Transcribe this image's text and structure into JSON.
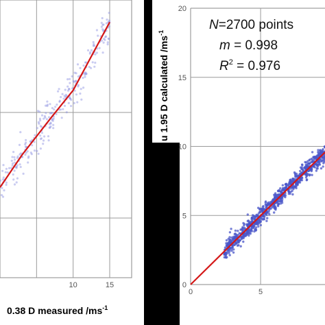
{
  "chart_data": [
    {
      "type": "scatter",
      "xlabel": "0.38 D measured  /ms",
      "xlabel_sup": "-1",
      "xlim": [
        0,
        18
      ],
      "ylim": [
        -1,
        15.3
      ],
      "grid": true,
      "x_ticks": [
        10,
        15
      ],
      "fit_line": {
        "points": [
          [
            0,
            4.3
          ],
          [
            3,
            6.2
          ],
          [
            7,
            8.4
          ],
          [
            10,
            10.0
          ],
          [
            12,
            11.6
          ],
          [
            15,
            14.0
          ]
        ],
        "color": "#d41616"
      },
      "scatter_color": "#8a8ee0",
      "cloud": {
        "x_from": 0,
        "x_to": 15,
        "spread": 0.55,
        "count": 260
      }
    },
    {
      "type": "scatter",
      "ylabel": "u 1.95 D calculated /ms",
      "ylabel_sup": "-1",
      "xlim": [
        0,
        9.6
      ],
      "ylim": [
        0,
        20
      ],
      "grid": true,
      "x_ticks": [
        0,
        5
      ],
      "y_ticks": [
        0,
        5,
        10,
        15,
        20
      ],
      "fit_line": {
        "points": [
          [
            0,
            0
          ],
          [
            9.6,
            9.58
          ]
        ],
        "color": "#d41616"
      },
      "scatter_color": "#4a55c8",
      "cloud": {
        "x_from": 2.4,
        "x_to": 9.6,
        "spread": 0.32,
        "count": 900
      },
      "annotations": {
        "n_italic": "N",
        "n_rest": "=2700 points",
        "m_italic": "m",
        "m_rest": " = 0.998",
        "r_italic": "R",
        "r_sup": "2",
        "r_rest": " = 0.976"
      }
    }
  ]
}
